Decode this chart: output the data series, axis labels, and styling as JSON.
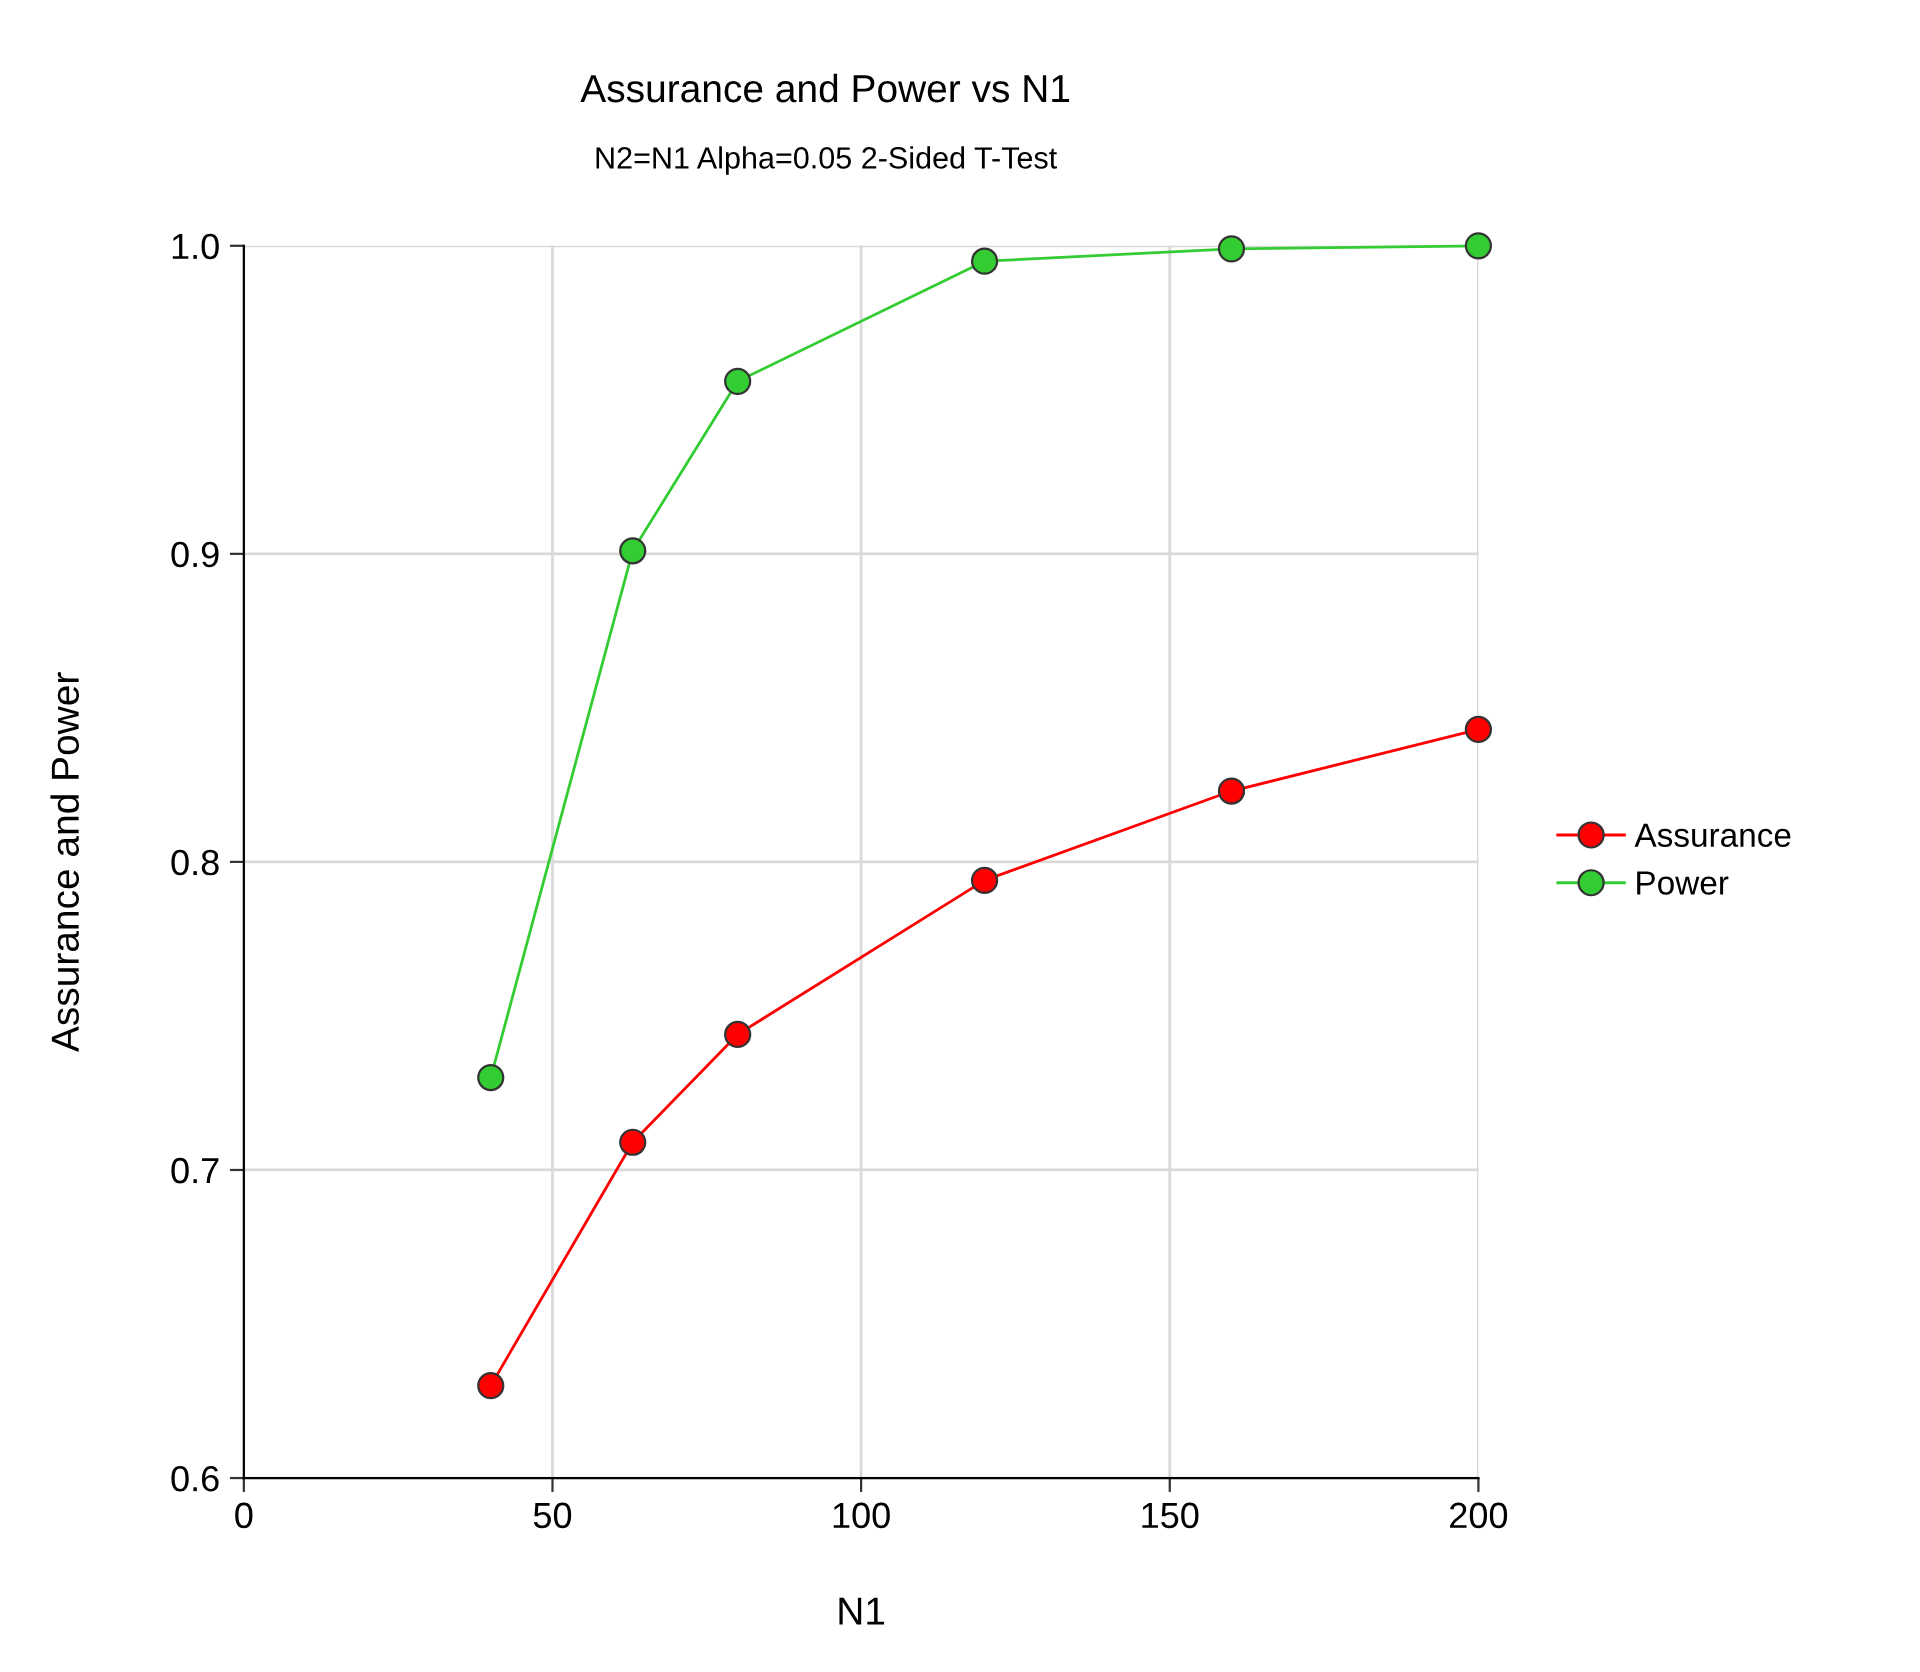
{
  "chart_data": {
    "type": "line",
    "title": "Assurance and Power vs N1",
    "subtitle": "N2=N1 Alpha=0.05 2-Sided T-Test",
    "xlabel": "N1",
    "ylabel": "Assurance and Power",
    "x": [
      40,
      63,
      80,
      120,
      160,
      200
    ],
    "series": [
      {
        "name": "Assurance",
        "color": "#ff0000",
        "values": [
          0.63,
          0.709,
          0.744,
          0.794,
          0.823,
          0.843
        ]
      },
      {
        "name": "Power",
        "color": "#33cc33",
        "values": [
          0.73,
          0.901,
          0.956,
          0.995,
          0.999,
          1.0
        ]
      }
    ],
    "xlim": [
      0,
      200
    ],
    "xticks": [
      0,
      50,
      100,
      150,
      200
    ],
    "ylim": [
      0.6,
      1.0
    ],
    "yticks": [
      {
        "value": 0.6,
        "label": "0.6"
      },
      {
        "value": 0.7,
        "label": "0.7"
      },
      {
        "value": 0.8,
        "label": "0.8"
      },
      {
        "value": 0.9,
        "label": "0.9"
      },
      {
        "value": 1.0,
        "label": "1.0"
      }
    ],
    "grid": true,
    "legend": "right",
    "marker": "circle",
    "line_style": "solid"
  }
}
